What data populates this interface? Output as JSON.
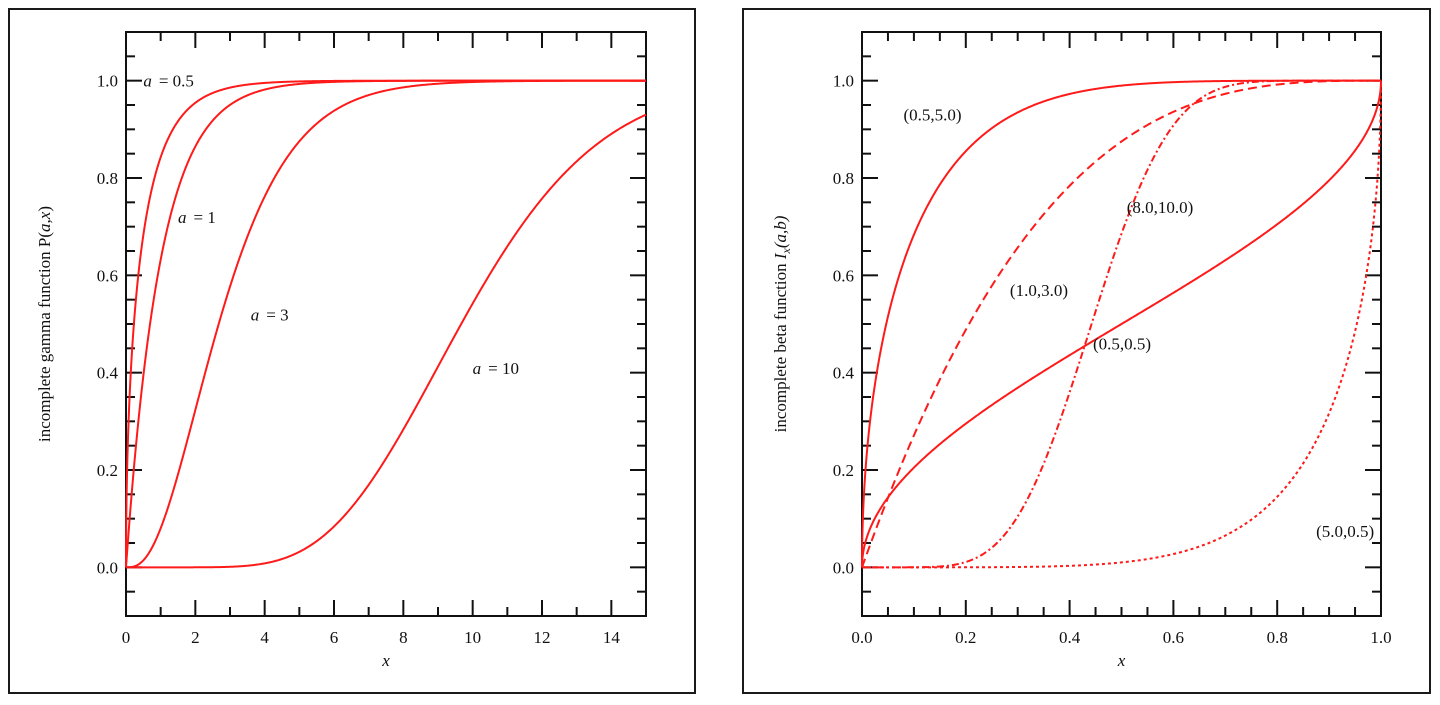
{
  "colors": {
    "curve": "#ff1a1a",
    "axis": "#111111",
    "frame": "#1a1a1a"
  },
  "chart_data": [
    {
      "type": "line",
      "title": "",
      "xlabel": "x",
      "ylabel": "incomplete gamma function P(a,x)",
      "ylabel_parts": {
        "pre": "incomplete gamma function P(",
        "a": "a",
        "comma": ",",
        "x": "x",
        "post": ")"
      },
      "xlim": [
        0,
        15
      ],
      "ylim": [
        -0.1,
        1.1
      ],
      "x_ticks": [
        0,
        2,
        4,
        6,
        8,
        10,
        12,
        14
      ],
      "x_tick_labels": [
        "0",
        "2",
        "4",
        "6",
        "8",
        "10",
        "12",
        "14"
      ],
      "x_minor_step": 1,
      "y_ticks": [
        0.0,
        0.2,
        0.4,
        0.6,
        0.8,
        1.0
      ],
      "y_tick_labels": [
        "0.0",
        "0.2",
        "0.4",
        "0.6",
        "0.8",
        "1.0"
      ],
      "y_minor_step": 0.05,
      "grid": false,
      "legend": "none (inline annotations)",
      "series": [
        {
          "name": "a = 0.5",
          "param": 0.5,
          "style": "solid",
          "x": [
            0,
            0.05,
            0.1,
            0.25,
            0.5,
            1,
            1.5,
            2,
            3,
            4,
            5,
            6,
            8,
            10,
            15
          ],
          "values": [
            0,
            0.248,
            0.345,
            0.52,
            0.683,
            0.843,
            0.917,
            0.954,
            0.986,
            0.995,
            0.998,
            0.999,
            1.0,
            1.0,
            1.0
          ]
        },
        {
          "name": "a = 1",
          "param": 1,
          "style": "solid",
          "x": [
            0,
            0.25,
            0.5,
            1,
            1.5,
            2,
            3,
            4,
            5,
            6,
            8,
            10,
            15
          ],
          "values": [
            0,
            0.221,
            0.393,
            0.632,
            0.777,
            0.865,
            0.95,
            0.982,
            0.993,
            0.998,
            1.0,
            1.0,
            1.0
          ]
        },
        {
          "name": "a = 3",
          "param": 3,
          "style": "solid",
          "x": [
            0,
            0.5,
            1,
            1.5,
            2,
            3,
            4,
            5,
            6,
            7,
            8,
            10,
            12,
            15
          ],
          "values": [
            0,
            0.014,
            0.08,
            0.191,
            0.323,
            0.577,
            0.762,
            0.875,
            0.938,
            0.97,
            0.986,
            0.997,
            0.999,
            1.0
          ]
        },
        {
          "name": "a = 10",
          "param": 10,
          "style": "solid",
          "x": [
            0,
            2,
            3,
            4,
            5,
            6,
            7,
            8,
            9,
            10,
            11,
            12,
            13,
            14,
            15
          ],
          "values": [
            0,
            0.0,
            0.0011,
            0.0081,
            0.032,
            0.084,
            0.17,
            0.283,
            0.413,
            0.542,
            0.659,
            0.758,
            0.834,
            0.891,
            0.93
          ]
        }
      ],
      "annotations": [
        {
          "var": "a",
          "text": "= 0.5",
          "x": 0.5,
          "y": 1.0
        },
        {
          "var": "a",
          "text": "= 1",
          "x": 1.5,
          "y": 0.72
        },
        {
          "var": "a",
          "text": "= 3",
          "x": 3.6,
          "y": 0.52
        },
        {
          "var": "a",
          "text": "= 10",
          "x": 10.0,
          "y": 0.41
        }
      ]
    },
    {
      "type": "line",
      "title": "",
      "xlabel": "x",
      "ylabel": "incomplete beta function I_x(a,b)",
      "ylabel_parts": {
        "pre": "incomplete beta function ",
        "I": "I",
        "sub": "x",
        "args": "(a,b)"
      },
      "xlim": [
        0,
        1
      ],
      "ylim": [
        -0.1,
        1.1
      ],
      "x_ticks": [
        0.0,
        0.2,
        0.4,
        0.6,
        0.8,
        1.0
      ],
      "x_tick_labels": [
        "0.0",
        "0.2",
        "0.4",
        "0.6",
        "0.8",
        "1.0"
      ],
      "x_minor_step": 0.05,
      "y_ticks": [
        0.0,
        0.2,
        0.4,
        0.6,
        0.8,
        1.0
      ],
      "y_tick_labels": [
        "0.0",
        "0.2",
        "0.4",
        "0.6",
        "0.8",
        "1.0"
      ],
      "y_minor_step": 0.05,
      "grid": false,
      "legend": "none (inline annotations)",
      "series": [
        {
          "name": "(0.5,5.0)",
          "a": 0.5,
          "b": 5.0,
          "style": "solid",
          "x": [
            0,
            0.005,
            0.01,
            0.02,
            0.05,
            0.1,
            0.15,
            0.2,
            0.3,
            0.4,
            0.5,
            0.6,
            0.8,
            1.0
          ],
          "values": [
            0,
            0.191,
            0.268,
            0.373,
            0.561,
            0.743,
            0.845,
            0.906,
            0.965,
            0.988,
            0.996,
            0.999,
            1.0,
            1.0
          ]
        },
        {
          "name": "(1.0,3.0)",
          "a": 1.0,
          "b": 3.0,
          "style": "dashed",
          "x": [
            0,
            0.05,
            0.1,
            0.2,
            0.3,
            0.4,
            0.5,
            0.6,
            0.7,
            0.8,
            0.9,
            1.0
          ],
          "values": [
            0,
            0.143,
            0.271,
            0.488,
            0.657,
            0.784,
            0.875,
            0.936,
            0.973,
            0.992,
            0.999,
            1.0
          ]
        },
        {
          "name": "(8.0,10.0)",
          "a": 8.0,
          "b": 10.0,
          "style": "dashdot",
          "x": [
            0,
            0.1,
            0.2,
            0.25,
            0.3,
            0.35,
            0.4,
            0.45,
            0.5,
            0.55,
            0.6,
            0.65,
            0.7,
            0.8,
            1.0
          ],
          "values": [
            0,
            0.0001,
            0.016,
            0.063,
            0.164,
            0.316,
            0.494,
            0.668,
            0.811,
            0.91,
            0.965,
            0.989,
            0.997,
            1.0,
            1.0
          ]
        },
        {
          "name": "(0.5,0.5)",
          "a": 0.5,
          "b": 0.5,
          "style": "solid",
          "x": [
            0,
            0.01,
            0.05,
            0.1,
            0.2,
            0.3,
            0.4,
            0.5,
            0.6,
            0.7,
            0.8,
            0.9,
            0.95,
            0.99,
            1.0
          ],
          "values": [
            0,
            0.064,
            0.144,
            0.205,
            0.295,
            0.369,
            0.436,
            0.5,
            0.564,
            0.631,
            0.705,
            0.795,
            0.856,
            0.936,
            1.0
          ]
        },
        {
          "name": "(5.0,0.5)",
          "a": 5.0,
          "b": 0.5,
          "style": "dotted",
          "x": [
            0,
            0.2,
            0.4,
            0.5,
            0.6,
            0.7,
            0.8,
            0.9,
            0.95,
            0.98,
            1.0
          ],
          "values": [
            0,
            0.0002,
            0.004,
            0.012,
            0.03,
            0.068,
            0.145,
            0.306,
            0.458,
            0.64,
            1.0
          ]
        }
      ],
      "annotations": [
        {
          "text": "(0.5,5.0)",
          "x": 0.08,
          "y": 0.93
        },
        {
          "text": "(1.0,3.0)",
          "x": 0.285,
          "y": 0.57
        },
        {
          "text": "(8.0,10.0)",
          "x": 0.51,
          "y": 0.74
        },
        {
          "text": "(0.5,0.5)",
          "x": 0.445,
          "y": 0.46
        },
        {
          "text": "(5.0,0.5)",
          "x": 0.875,
          "y": 0.075
        }
      ]
    }
  ]
}
